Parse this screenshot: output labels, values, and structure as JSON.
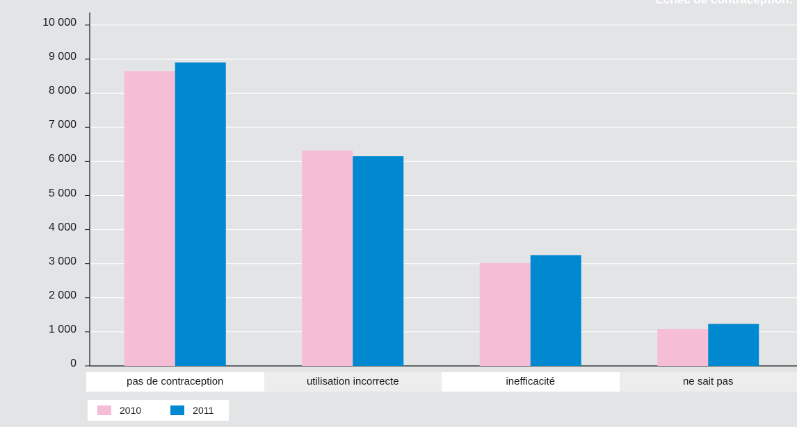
{
  "title": "Échec de contraception: ",
  "colors": {
    "series_2010": "#f6bdd6",
    "series_2011": "#0088d1",
    "background": "#e3e4e6",
    "grid": "#ffffff"
  },
  "legend": [
    {
      "label": "2010",
      "color": "#f6bdd6"
    },
    {
      "label": "2011",
      "color": "#0088d1"
    }
  ],
  "chart_data": {
    "type": "bar",
    "title": "Échec de contraception: ",
    "categories": [
      "pas de contraception",
      "utilisation incorrecte",
      "inefficacité",
      "ne sait pas"
    ],
    "series": [
      {
        "name": "2010",
        "values": [
          8650,
          6320,
          3020,
          1080
        ]
      },
      {
        "name": "2011",
        "values": [
          8900,
          6150,
          3250,
          1230
        ]
      }
    ],
    "ylim": [
      0,
      10000
    ],
    "yticks": [
      "0",
      "1 000",
      "2 000",
      "3 000",
      "4 000",
      "5 000",
      "6 000",
      "7 000",
      "8 000",
      "9 000",
      "10 000"
    ],
    "grid": true,
    "legend_position": "bottom-left"
  }
}
